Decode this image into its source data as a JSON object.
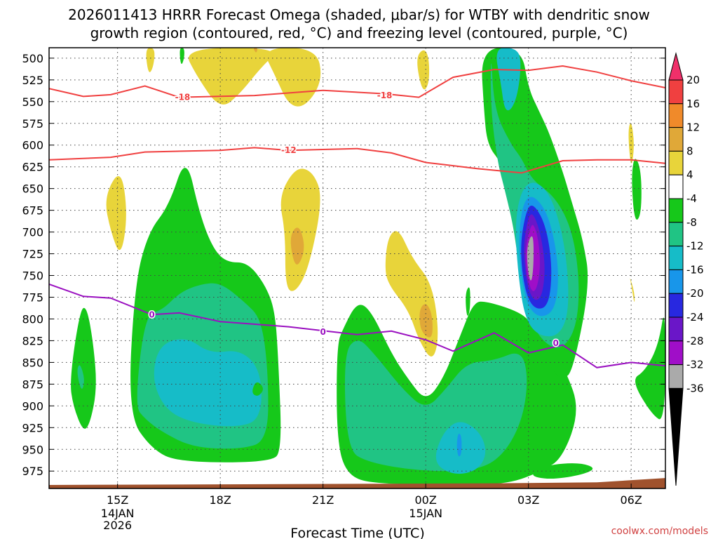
{
  "chart_data": {
    "type": "contour",
    "title_line1": "2026011413 HRRR Forecast Omega (shaded, μbar/s) for WTBY with dendritic snow",
    "title_line2": "growth region (contoured, red, °C) and freezing level (contoured, purple, °C)",
    "xlabel": "Forecast Time (UTC)",
    "credit": "coolwx.com/models",
    "x_range_hours": [
      13.0,
      31.0
    ],
    "x_ticks": [
      {
        "hour": 15,
        "label": "15Z",
        "sub": [
          "14JAN",
          "2026"
        ]
      },
      {
        "hour": 18,
        "label": "18Z",
        "sub": []
      },
      {
        "hour": 21,
        "label": "21Z",
        "sub": []
      },
      {
        "hour": 24,
        "label": "00Z",
        "sub": [
          "15JAN"
        ]
      },
      {
        "hour": 27,
        "label": "03Z",
        "sub": []
      },
      {
        "hour": 30,
        "label": "06Z",
        "sub": []
      }
    ],
    "y_range_mb": [
      488,
      995
    ],
    "y_ticks": [
      500,
      525,
      550,
      575,
      600,
      625,
      650,
      675,
      700,
      725,
      750,
      775,
      800,
      825,
      850,
      875,
      900,
      925,
      950,
      975
    ],
    "colorbar": {
      "levels": [
        20,
        16,
        12,
        8,
        4,
        -4,
        -8,
        -12,
        -16,
        -20,
        -24,
        -28,
        -32,
        -36
      ],
      "colors": [
        "#f0306a",
        "#f04040",
        "#f08a2a",
        "#e0a838",
        "#e8d43a",
        "#ffffff",
        "#16c81a",
        "#20c484",
        "#16bcc8",
        "#1896ea",
        "#2828e0",
        "#6a16c8",
        "#a00ec8",
        "#aaaaaa",
        "#000000"
      ]
    },
    "contours": {
      "dgz_minus18": {
        "label": "-18",
        "color": "#f04040",
        "points": [
          [
            13.0,
            535
          ],
          [
            14.0,
            544
          ],
          [
            14.8,
            542
          ],
          [
            15.8,
            532
          ],
          [
            16.8,
            545
          ],
          [
            19.0,
            543
          ],
          [
            21.0,
            537
          ],
          [
            22.8,
            541
          ],
          [
            23.8,
            545
          ],
          [
            24.8,
            522
          ],
          [
            26.0,
            513
          ],
          [
            27.0,
            514
          ],
          [
            28.0,
            509
          ],
          [
            29.0,
            516
          ],
          [
            30.0,
            526
          ],
          [
            31.0,
            534
          ]
        ],
        "label_at": [
          [
            16.9,
            545
          ],
          [
            22.8,
            543
          ]
        ]
      },
      "dgz_minus12": {
        "label": "-12",
        "color": "#f04040",
        "points": [
          [
            13.0,
            617
          ],
          [
            14.8,
            614
          ],
          [
            15.8,
            608
          ],
          [
            18.0,
            606
          ],
          [
            19.0,
            603
          ],
          [
            20.0,
            606
          ],
          [
            22.0,
            604
          ],
          [
            23.0,
            609
          ],
          [
            24.0,
            620
          ],
          [
            25.5,
            627
          ],
          [
            26.8,
            632
          ],
          [
            28.0,
            618
          ],
          [
            29.0,
            617
          ],
          [
            30.0,
            617
          ],
          [
            31.0,
            621
          ]
        ],
        "label_at": [
          [
            20.0,
            606
          ]
        ]
      },
      "freezing_level_0": {
        "label": "0",
        "color": "#9a10c0",
        "points": [
          [
            13.0,
            760
          ],
          [
            14.0,
            774
          ],
          [
            14.8,
            776
          ],
          [
            16.0,
            795
          ],
          [
            16.8,
            793
          ],
          [
            18.0,
            803
          ],
          [
            20.0,
            809
          ],
          [
            22.0,
            818
          ],
          [
            23.0,
            814
          ],
          [
            24.0,
            824
          ],
          [
            24.8,
            837
          ],
          [
            26.0,
            816
          ],
          [
            27.0,
            839
          ],
          [
            28.0,
            830
          ],
          [
            29.0,
            856
          ],
          [
            30.0,
            850
          ],
          [
            31.0,
            854
          ]
        ],
        "label_at": [
          [
            16.0,
            795
          ],
          [
            21.0,
            815
          ],
          [
            27.8,
            828
          ]
        ]
      }
    },
    "terrain_surface_mb": [
      [
        13.0,
        991
      ],
      [
        20.0,
        990
      ],
      [
        26.0,
        989
      ],
      [
        29.0,
        988
      ],
      [
        31.0,
        983
      ]
    ]
  },
  "colors": {
    "terrain": "#a0522d",
    "grid": "#444444",
    "credit": "#d04040"
  }
}
